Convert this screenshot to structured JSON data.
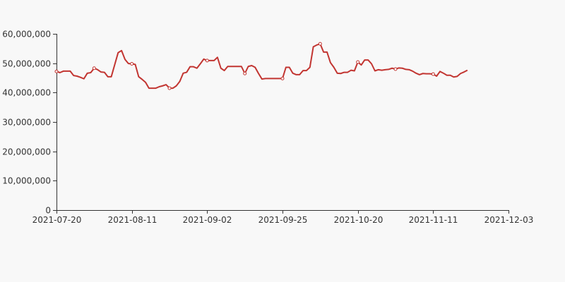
{
  "chart_data": {
    "type": "line",
    "title": "",
    "xlabel": "",
    "ylabel": "",
    "ylim": [
      0,
      60000000
    ],
    "y_ticks": [
      {
        "value": 0,
        "label": "0"
      },
      {
        "value": 10000000,
        "label": "10,000,000"
      },
      {
        "value": 20000000,
        "label": "20,000,000"
      },
      {
        "value": 30000000,
        "label": "30,000,000"
      },
      {
        "value": 40000000,
        "label": "40,000,000"
      },
      {
        "value": 50000000,
        "label": "50,000,000"
      },
      {
        "value": 60000000,
        "label": "60,000,000"
      }
    ],
    "x_ticks": [
      "2021-07-20",
      "2021-08-11",
      "2021-09-02",
      "2021-09-25",
      "2021-10-20",
      "2021-11-11",
      "2021-12-03"
    ],
    "grid": false,
    "legend": "none",
    "series": [
      {
        "color": "#c23531",
        "marker_every": 11,
        "values": [
          47200000,
          46800000,
          47300000,
          47300000,
          47300000,
          45800000,
          45600000,
          45200000,
          44700000,
          46600000,
          46800000,
          48300000,
          47800000,
          47000000,
          46900000,
          45400000,
          45400000,
          49500000,
          53600000,
          54300000,
          51300000,
          49900000,
          49800000,
          49600000,
          45400000,
          44500000,
          43500000,
          41500000,
          41500000,
          41500000,
          42000000,
          42300000,
          42700000,
          41500000,
          41500000,
          42300000,
          43800000,
          46600000,
          46900000,
          48800000,
          48800000,
          48300000,
          49800000,
          51400000,
          50900000,
          50900000,
          50900000,
          52000000,
          48300000,
          47500000,
          48900000,
          48900000,
          48900000,
          48900000,
          48900000,
          46500000,
          48900000,
          49200000,
          48600000,
          46500000,
          44600000,
          44800000,
          44800000,
          44800000,
          44800000,
          44800000,
          44800000,
          48600000,
          48600000,
          46600000,
          46100000,
          46100000,
          47500000,
          47500000,
          48600000,
          55600000,
          56200000,
          56600000,
          53800000,
          53800000,
          50200000,
          48600000,
          46600000,
          46500000,
          46900000,
          46900000,
          47600000,
          47400000,
          50400000,
          49400000,
          51100000,
          51100000,
          49800000,
          47400000,
          47800000,
          47600000,
          47800000,
          47900000,
          48300000,
          48000000,
          48400000,
          48300000,
          47900000,
          47800000,
          47300000,
          46600000,
          46100000,
          46500000,
          46400000,
          46400000,
          46300000,
          45600000,
          47200000,
          46600000,
          45900000,
          45900000,
          45300000,
          45500000,
          46500000,
          47000000,
          47600000
        ]
      }
    ]
  }
}
